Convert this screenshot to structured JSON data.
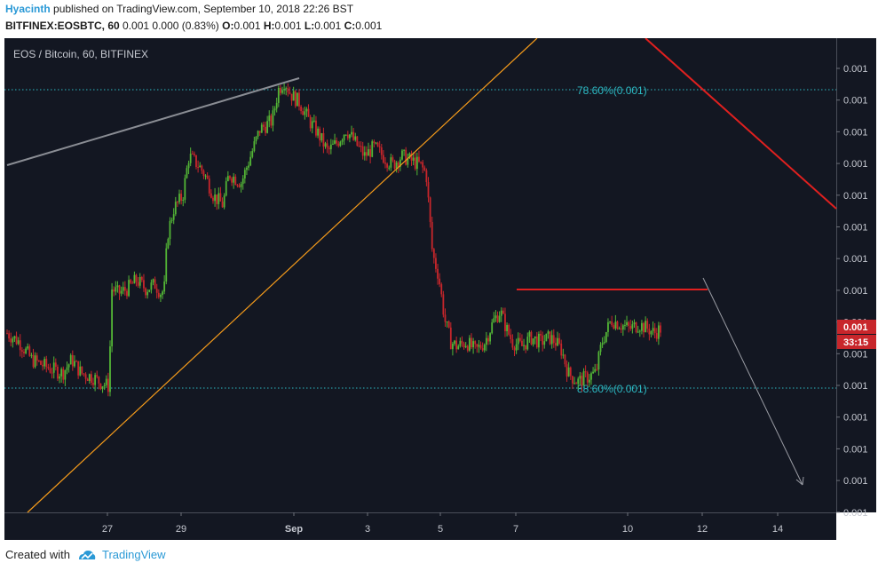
{
  "header": {
    "author": "Hyacinth",
    "published_text": " published on TradingView.com, September 10, 2018 22:26 BST",
    "symbol": "BITFINEX:EOSBTC, 60",
    "change": "0.001 0.000 (0.83%)",
    "o_label": "O:",
    "o_value": "0.001",
    "h_label": "H:",
    "h_value": "0.001",
    "l_label": "L:",
    "l_value": "0.001",
    "c_label": "C:",
    "c_value": "0.001"
  },
  "footer": {
    "created_with": "Created with",
    "brand": "TradingView"
  },
  "chart_data": {
    "type": "candlestick",
    "title": "EOS / Bitcoin, 60, BITFINEX",
    "x_tick_labels": [
      "27",
      "29",
      "Sep",
      "3",
      "5",
      "7",
      "10",
      "12",
      "14"
    ],
    "y_tick_labels": [
      "0.001",
      "0.001",
      "0.001",
      "0.001",
      "0.001",
      "0.001",
      "0.001",
      "0.001",
      "0.001",
      "0.001",
      "0.001",
      "0.001",
      "0.001",
      "0.001",
      "0.001"
    ],
    "price_label": "0.001",
    "countdown_label": "33:15",
    "annotations": [
      {
        "text": "78.60%(0.001)",
        "type": "fib-level",
        "level": 78.6
      },
      {
        "text": "88.60%(0.001)",
        "type": "fib-level",
        "level": 88.6
      }
    ],
    "colors": {
      "background": "#131722",
      "up": "#53b636",
      "down": "#c8262b",
      "fib": "#2cb8c2",
      "trendline_orange": "#f59b1b",
      "trendline_red": "#e0201f",
      "trendline_grey": "#8a8d94",
      "arrow": "#9a9ca4"
    },
    "price_path": [
      [
        0,
        0.42
      ],
      [
        4,
        0.4
      ],
      [
        8,
        0.36
      ],
      [
        14,
        0.34
      ],
      [
        18,
        0.33
      ],
      [
        21,
        0.36
      ],
      [
        24,
        0.33
      ],
      [
        28,
        0.32
      ],
      [
        30,
        0.31
      ],
      [
        33,
        0.3
      ],
      [
        34,
        0.52
      ],
      [
        36,
        0.51
      ],
      [
        39,
        0.52
      ],
      [
        42,
        0.54
      ],
      [
        45,
        0.52
      ],
      [
        48,
        0.53
      ],
      [
        50,
        0.51
      ],
      [
        51,
        0.52
      ],
      [
        52,
        0.64
      ],
      [
        54,
        0.7
      ],
      [
        57,
        0.73
      ],
      [
        59,
        0.82
      ],
      [
        62,
        0.8
      ],
      [
        64,
        0.78
      ],
      [
        67,
        0.73
      ],
      [
        70,
        0.71
      ],
      [
        72,
        0.78
      ],
      [
        76,
        0.76
      ],
      [
        79,
        0.82
      ],
      [
        82,
        0.88
      ],
      [
        86,
        0.9
      ],
      [
        88,
        0.97
      ],
      [
        90,
        0.99
      ],
      [
        92,
        0.96
      ],
      [
        95,
        0.94
      ],
      [
        98,
        0.9
      ],
      [
        101,
        0.87
      ],
      [
        104,
        0.83
      ],
      [
        107,
        0.85
      ],
      [
        110,
        0.88
      ],
      [
        113,
        0.85
      ],
      [
        116,
        0.82
      ],
      [
        119,
        0.84
      ],
      [
        122,
        0.82
      ],
      [
        125,
        0.8
      ],
      [
        128,
        0.82
      ],
      [
        131,
        0.81
      ],
      [
        134,
        0.8
      ],
      [
        136,
        0.78
      ],
      [
        138,
        0.6
      ],
      [
        140,
        0.55
      ],
      [
        142,
        0.45
      ],
      [
        144,
        0.4
      ],
      [
        146,
        0.39
      ],
      [
        149,
        0.4
      ],
      [
        152,
        0.38
      ],
      [
        155,
        0.4
      ],
      [
        158,
        0.45
      ],
      [
        160,
        0.47
      ],
      [
        162,
        0.43
      ],
      [
        164,
        0.4
      ],
      [
        167,
        0.39
      ],
      [
        170,
        0.41
      ],
      [
        173,
        0.4
      ],
      [
        176,
        0.41
      ],
      [
        178,
        0.4
      ],
      [
        180,
        0.38
      ],
      [
        182,
        0.33
      ],
      [
        185,
        0.31
      ],
      [
        188,
        0.32
      ],
      [
        191,
        0.33
      ],
      [
        193,
        0.4
      ],
      [
        196,
        0.45
      ],
      [
        199,
        0.44
      ],
      [
        202,
        0.43
      ],
      [
        205,
        0.44
      ],
      [
        208,
        0.43
      ],
      [
        210,
        0.42
      ],
      [
        212,
        0.43
      ]
    ]
  }
}
